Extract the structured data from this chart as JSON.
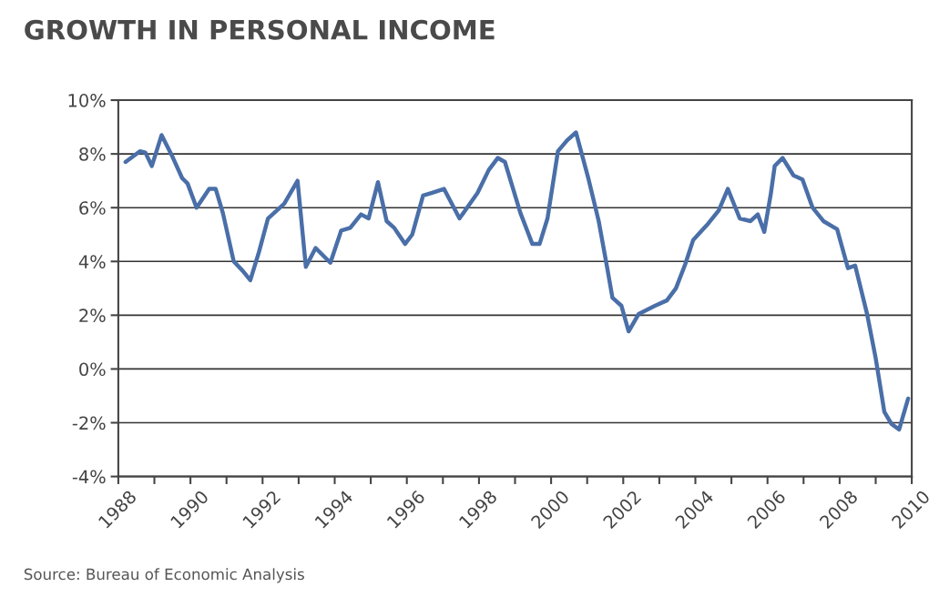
{
  "chart_data": {
    "type": "line",
    "title": "GROWTH IN PERSONAL INCOME",
    "annotations": [
      "Source: Bureau of Economic Analysis"
    ],
    "series": [
      {
        "color": "#4a6fa8",
        "x": [
          1988.2,
          1988.6,
          1988.75,
          1988.93,
          1989.2,
          1989.5,
          1989.77,
          1989.92,
          1990.17,
          1990.52,
          1990.7,
          1990.9,
          1991.2,
          1991.45,
          1991.66,
          1991.9,
          1992.15,
          1992.6,
          1992.97,
          1993.2,
          1993.47,
          1993.88,
          1994.18,
          1994.43,
          1994.73,
          1994.94,
          1995.2,
          1995.44,
          1995.65,
          1995.95,
          1996.15,
          1996.45,
          1996.7,
          1997.03,
          1997.46,
          1997.96,
          1998.27,
          1998.52,
          1998.72,
          1999.15,
          1999.48,
          1999.68,
          1999.9,
          2000.19,
          2000.44,
          2000.69,
          2001.04,
          2001.32,
          2001.55,
          2001.7,
          2001.95,
          2002.15,
          2002.43,
          2002.88,
          2003.21,
          2003.46,
          2003.72,
          2003.94,
          2004.35,
          2004.65,
          2004.9,
          2005.23,
          2005.53,
          2005.73,
          2005.91,
          2006.09,
          2006.2,
          2006.42,
          2006.72,
          2006.97,
          2007.25,
          2007.55,
          2007.93,
          2008.23,
          2008.43,
          2008.76,
          2009.0,
          2009.24,
          2009.44,
          2009.65,
          2009.9
        ],
        "values": [
          7.7,
          8.1,
          8.05,
          7.55,
          8.7,
          7.9,
          7.1,
          6.9,
          6.0,
          6.7,
          6.7,
          5.8,
          4.0,
          3.65,
          3.3,
          4.35,
          5.6,
          6.15,
          7.0,
          3.8,
          4.5,
          3.95,
          5.15,
          5.25,
          5.75,
          5.6,
          6.95,
          5.5,
          5.25,
          4.65,
          5.0,
          6.45,
          6.55,
          6.7,
          5.6,
          6.55,
          7.4,
          7.85,
          7.7,
          5.8,
          4.65,
          4.65,
          5.6,
          8.1,
          8.5,
          8.8,
          7.05,
          5.5,
          3.8,
          2.65,
          2.35,
          1.4,
          2.05,
          2.35,
          2.55,
          3.0,
          3.9,
          4.8,
          5.4,
          5.9,
          6.7,
          5.6,
          5.5,
          5.75,
          5.1,
          6.5,
          7.55,
          7.85,
          7.2,
          7.05,
          6.0,
          5.5,
          5.2,
          3.75,
          3.85,
          2.05,
          0.4,
          -1.6,
          -2.05,
          -2.25,
          -1.1
        ]
      }
    ],
    "xlim": [
      1988,
      2010
    ],
    "xticks": [
      1988,
      {
        "value": 1989,
        "label": null
      },
      1990,
      {
        "value": 1991,
        "label": null
      },
      1992,
      {
        "value": 1993,
        "label": null
      },
      1994,
      {
        "value": 1995,
        "label": null
      },
      1996,
      {
        "value": 1997,
        "label": null
      },
      1998,
      {
        "value": 1999,
        "label": null
      },
      2000,
      {
        "value": 2001,
        "label": null
      },
      2002,
      {
        "value": 2003,
        "label": null
      },
      2004,
      {
        "value": 2005,
        "label": null
      },
      2006,
      {
        "value": 2007,
        "label": null
      },
      2008,
      {
        "value": 2009,
        "label": null
      },
      2010
    ],
    "ylim": [
      -4,
      10
    ],
    "yticks": [
      {
        "value": -4,
        "label": "-4%"
      },
      {
        "value": -2,
        "label": "-2%"
      },
      {
        "value": 0,
        "label": "0%"
      },
      {
        "value": 2,
        "label": "2%"
      },
      {
        "value": 4,
        "label": "4%"
      },
      {
        "value": 6,
        "label": "6%"
      },
      {
        "value": 8,
        "label": "8%"
      },
      {
        "value": 10,
        "label": "10%"
      }
    ],
    "grid": "y"
  }
}
